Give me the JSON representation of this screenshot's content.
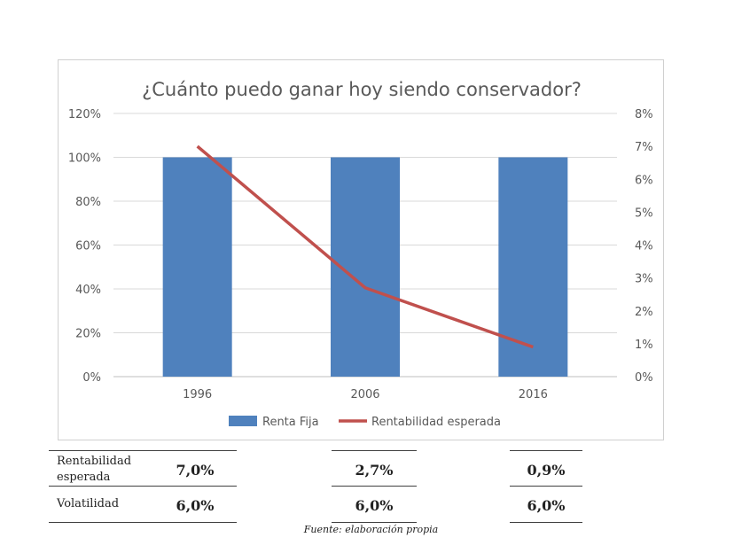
{
  "chart_data": {
    "type": "bar",
    "title": "¿Cuánto puedo ganar hoy siendo conservador?",
    "categories": [
      "1996",
      "2006",
      "2016"
    ],
    "series": [
      {
        "name": "Renta Fija",
        "type": "bar",
        "axis": "left",
        "color": "#4f81bd",
        "values": [
          100,
          100,
          100
        ]
      },
      {
        "name": "Rentabilidad esperada",
        "type": "line",
        "axis": "right",
        "color": "#c0504d",
        "values": [
          7.0,
          2.7,
          0.9
        ]
      }
    ],
    "y_left": {
      "min": 0,
      "max": 120,
      "step": 20,
      "ticks": [
        "0%",
        "20%",
        "40%",
        "60%",
        "80%",
        "100%",
        "120%"
      ]
    },
    "y_right": {
      "min": 0,
      "max": 8,
      "step": 1,
      "ticks": [
        "0%",
        "1%",
        "2%",
        "3%",
        "4%",
        "5%",
        "6%",
        "7%",
        "8%"
      ]
    },
    "legend_position": "bottom",
    "grid": true
  },
  "metrics": {
    "rows": [
      {
        "label_line1": "Rentabilidad",
        "label_line2": "esperada",
        "values": [
          "7,0%",
          "2,7%",
          "0,9%"
        ]
      },
      {
        "label_line1": "Volatilidad",
        "label_line2": "",
        "values": [
          "6,0%",
          "6,0%",
          "6,0%"
        ]
      }
    ]
  },
  "source": "Fuente: elaboración propia"
}
